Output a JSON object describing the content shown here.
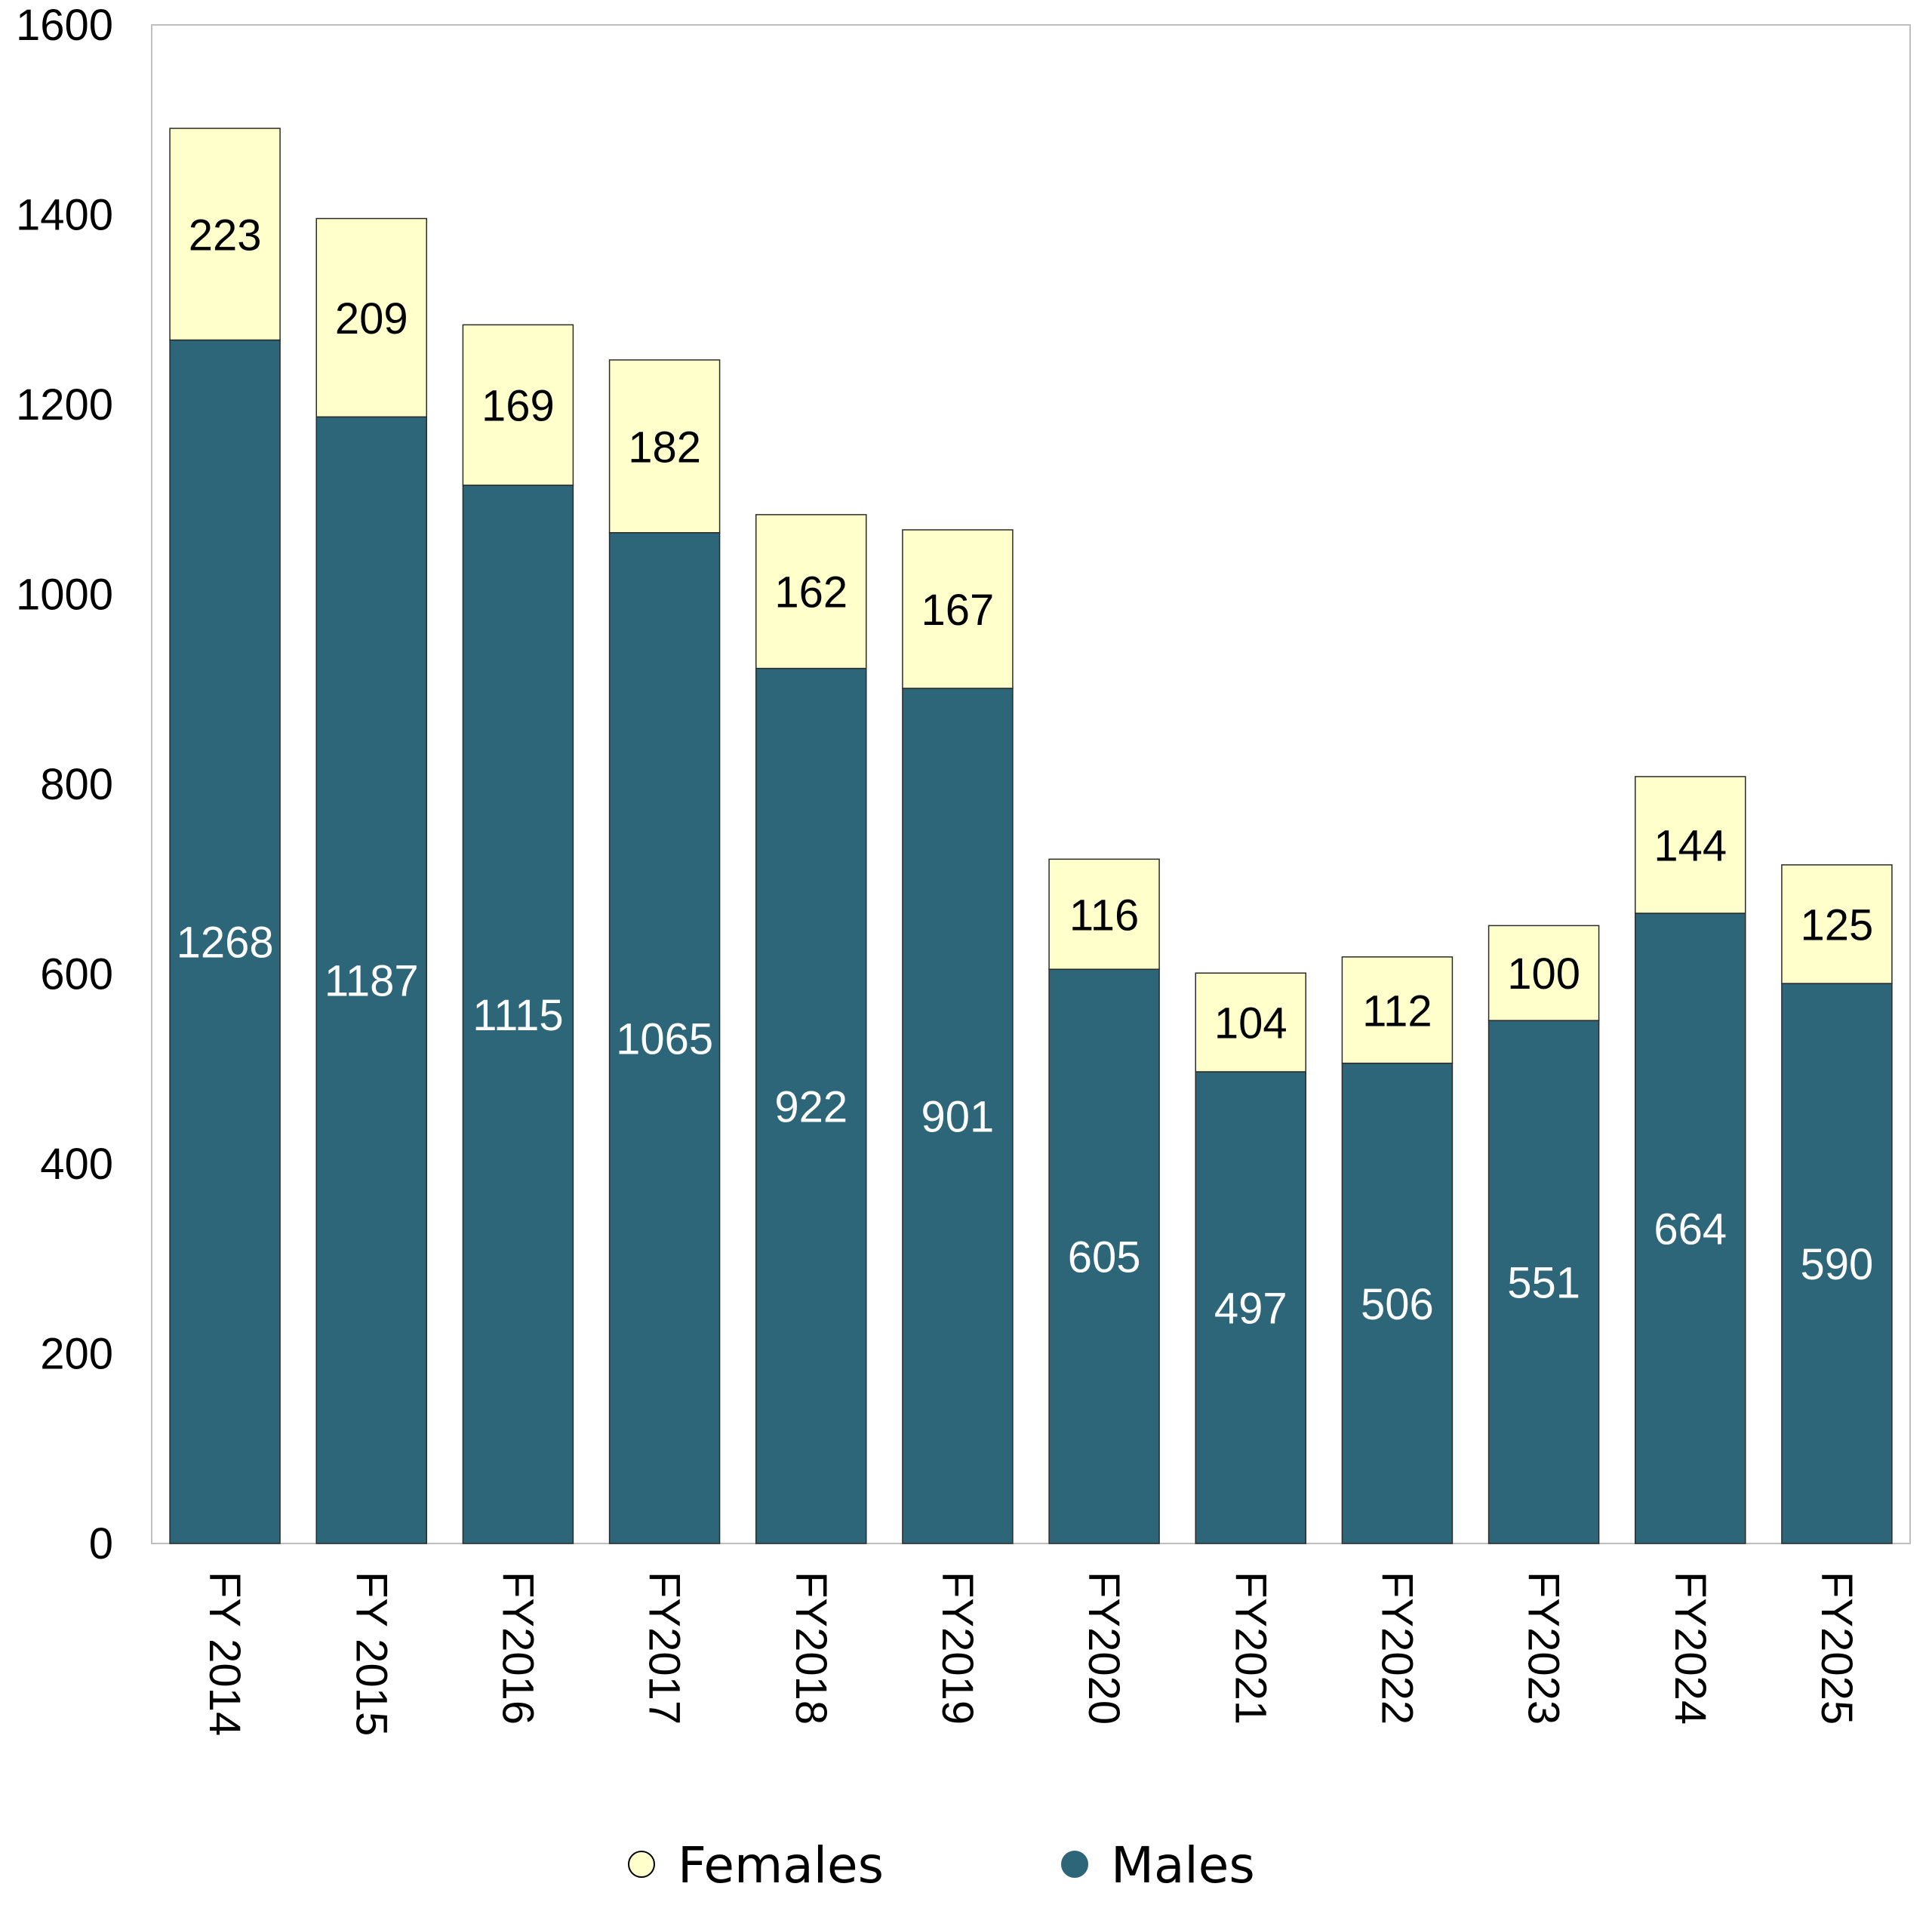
{
  "chart_data": {
    "type": "bar",
    "stacked": true,
    "categories": [
      "FY 2014",
      "FY 2015",
      "FY2016",
      "FY2017",
      "FY2018",
      "FY2019",
      "FY2020",
      "FY2021",
      "FY2022",
      "FY2023",
      "FY2024",
      "FY2025"
    ],
    "series": [
      {
        "name": "Males",
        "color": "#2d6678",
        "label_color": "#ffffff",
        "values": [
          1268,
          1187,
          1115,
          1065,
          922,
          901,
          605,
          497,
          506,
          551,
          664,
          590
        ]
      },
      {
        "name": "Females",
        "color": "#ffffcc",
        "label_color": "#000000",
        "values": [
          223,
          209,
          169,
          182,
          162,
          167,
          116,
          104,
          112,
          100,
          144,
          125
        ]
      }
    ],
    "title": "",
    "xlabel": "",
    "ylabel": "",
    "ylim": [
      0,
      1600
    ],
    "yticks": [
      0,
      200,
      400,
      600,
      800,
      1000,
      1200,
      1400,
      1600
    ],
    "grid": false,
    "legend_position": "bottom-center",
    "x_tick_rotation": "90deg-clockwise"
  },
  "legend": {
    "items": [
      {
        "label": "Females",
        "color": "#ffffcc"
      },
      {
        "label": "Males",
        "color": "#2d6678"
      }
    ]
  }
}
